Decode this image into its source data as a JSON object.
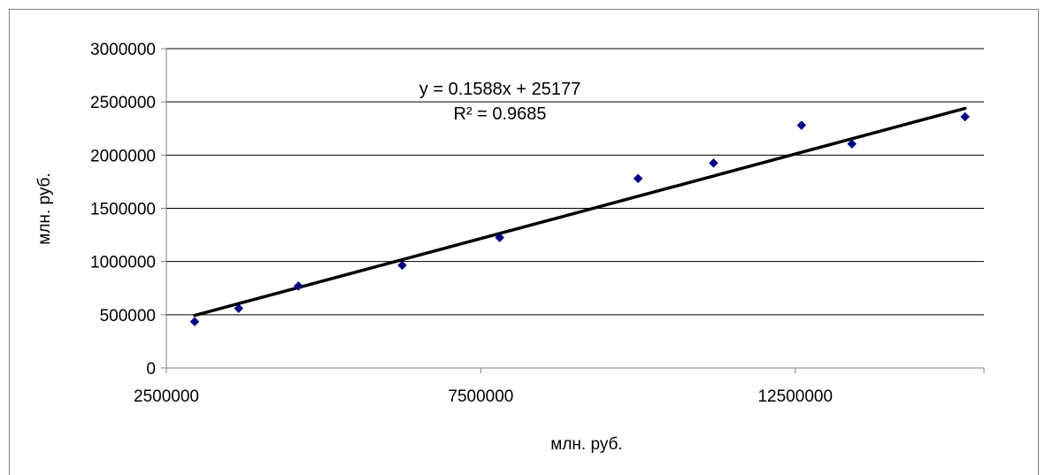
{
  "chart_data": {
    "type": "scatter",
    "title": "",
    "xlabel": "млн. руб.",
    "ylabel": "млн. руб.",
    "xlim": [
      2500000,
      15500000
    ],
    "ylim": [
      0,
      3000000
    ],
    "x_ticks": [
      2500000,
      7500000,
      12500000
    ],
    "x_tick_labels": [
      "2500000",
      "7500000",
      "12500000"
    ],
    "y_ticks": [
      0,
      500000,
      1000000,
      1500000,
      2000000,
      2500000,
      3000000
    ],
    "y_tick_labels": [
      "0",
      "500000",
      "1000000",
      "1500000",
      "2000000",
      "2500000",
      "3000000"
    ],
    "grid": {
      "horizontal": true,
      "vertical": false
    },
    "legend": "none",
    "series": [
      {
        "marker": "diamond",
        "color": "#000080",
        "points": [
          {
            "x": 2950000,
            "y": 435000
          },
          {
            "x": 3650000,
            "y": 560000
          },
          {
            "x": 4600000,
            "y": 770000
          },
          {
            "x": 6250000,
            "y": 965000
          },
          {
            "x": 7800000,
            "y": 1225000
          },
          {
            "x": 10000000,
            "y": 1780000
          },
          {
            "x": 11200000,
            "y": 1925000
          },
          {
            "x": 12600000,
            "y": 2280000
          },
          {
            "x": 13400000,
            "y": 2105000
          },
          {
            "x": 15200000,
            "y": 2360000
          }
        ]
      }
    ],
    "trendline": {
      "type": "linear",
      "slope": 0.1588,
      "intercept": 25177,
      "x_range": [
        2950000,
        15200000
      ],
      "color": "#000000",
      "equation_label": "y = 0.1588x + 25177",
      "r2_label": "R² = 0.9685"
    }
  }
}
